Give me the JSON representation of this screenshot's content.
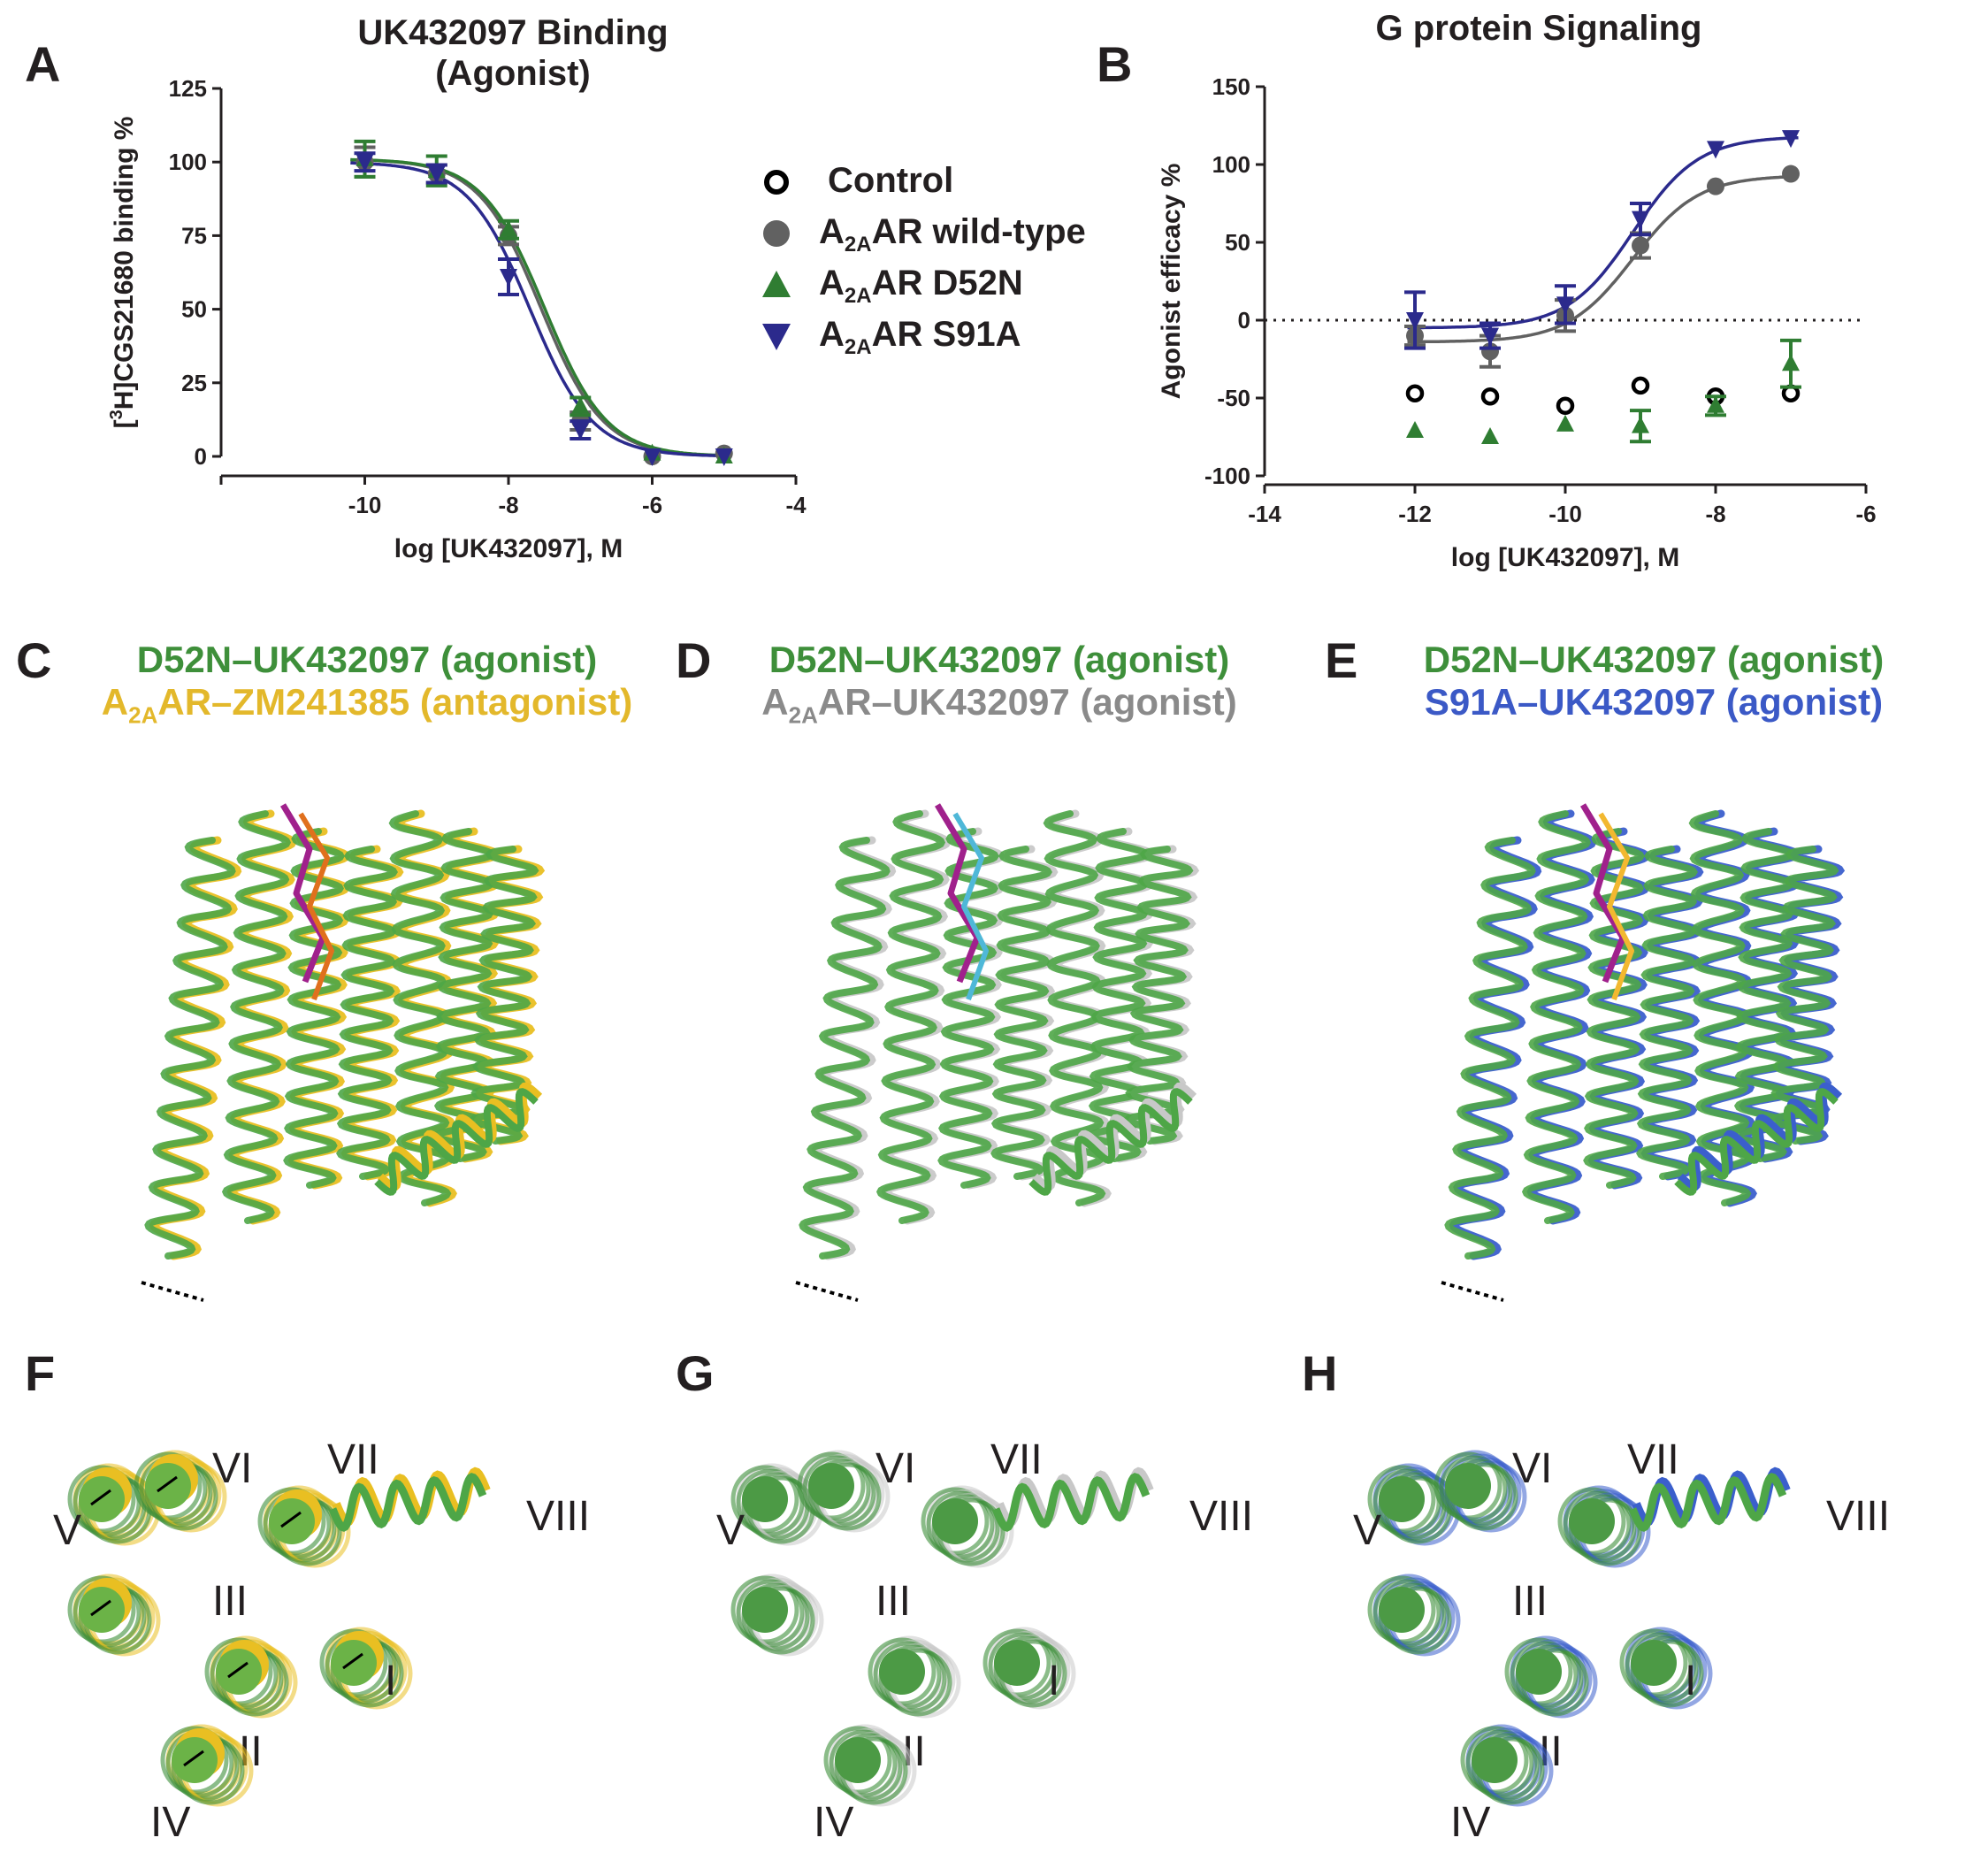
{
  "panels": {
    "A": {
      "letter": "A",
      "title_line1": "UK432097 Binding",
      "title_line2": "(Agonist)",
      "ylabel": "CGS21680 binding %",
      "xlabel": "log [UK432097], M"
    },
    "B": {
      "letter": "B",
      "title": "G protein Signaling",
      "ylabel": "Agonist efficacy %",
      "xlabel": "log [UK432097], M"
    },
    "C": {
      "letter": "C",
      "line1": "D52N–UK432097 (agonist)",
      "line2_main": "AR–ZM241385 (antagonist)"
    },
    "D": {
      "letter": "D",
      "line1": "D52N–UK432097 (agonist)",
      "line2_main": "AR–UK432097 (agonist)"
    },
    "E": {
      "letter": "E",
      "line1": "D52N–UK432097 (agonist)",
      "line2": "S91A–UK432097 (agonist)"
    },
    "F": {
      "letter": "F",
      "helices": [
        "I",
        "II",
        "III",
        "IV",
        "V",
        "VI",
        "VII",
        "VIII"
      ]
    },
    "G": {
      "letter": "G",
      "helices": [
        "I",
        "II",
        "III",
        "IV",
        "V",
        "VI",
        "VII",
        "VIII"
      ]
    },
    "H": {
      "letter": "H",
      "helices": [
        "I",
        "II",
        "III",
        "IV",
        "V",
        "VI",
        "VII",
        "VIII"
      ]
    }
  },
  "legend": {
    "control": "Control",
    "wt": "AR wild-type",
    "d52n": "AR D52N",
    "s91a": "AR S91A",
    "a_prefix": "A",
    "subscript": "2A"
  },
  "colors": {
    "control": "#000000",
    "wt": "#616161",
    "d52n": "#2f7d32",
    "s91a": "#2b2a8c",
    "struct_green": "#4ea647",
    "struct_gold": "#e9bf22",
    "struct_grey": "#c8c8c8",
    "struct_blue": "#3b5fcc"
  },
  "chart_data": [
    {
      "type": "scatter",
      "title": "UK432097 Binding (Agonist)",
      "xlabel": "log [UK432097], M",
      "ylabel": "[3H]CGS21680 binding %",
      "xlim": [
        -12,
        -4
      ],
      "ylim": [
        0,
        125
      ],
      "xticks": [
        -10,
        -8,
        -6,
        -4
      ],
      "yticks": [
        0,
        25,
        50,
        75,
        100,
        125
      ],
      "legend": "right",
      "series": [
        {
          "name": "A2AAR wild-type",
          "marker": "circle",
          "x": [
            -10,
            -9,
            -8,
            -7,
            -6,
            -5
          ],
          "y": [
            100,
            96,
            75,
            12,
            0,
            1
          ],
          "err": [
            5,
            3,
            3,
            3,
            1,
            1
          ],
          "fit": {
            "top": 101,
            "bottom": 0,
            "logEC50": -7.55,
            "hill": -1
          }
        },
        {
          "name": "A2AAR D52N",
          "marker": "triangle-up",
          "x": [
            -10,
            -9,
            -8,
            -7,
            -6,
            -5
          ],
          "y": [
            101,
            97,
            77,
            17,
            1,
            0
          ],
          "err": [
            6,
            5,
            3,
            3,
            1,
            1
          ],
          "fit": {
            "top": 101,
            "bottom": 0,
            "logEC50": -7.5,
            "hill": -1
          }
        },
        {
          "name": "A2AAR S91A",
          "marker": "triangle-down",
          "x": [
            -10,
            -9,
            -8,
            -7,
            -6,
            -5
          ],
          "y": [
            100,
            96,
            61,
            9,
            0,
            0
          ],
          "err": [
            3,
            3,
            6,
            3,
            1,
            1
          ],
          "fit": {
            "top": 100,
            "bottom": 0,
            "logEC50": -7.7,
            "hill": -1
          }
        }
      ]
    },
    {
      "type": "scatter",
      "title": "G protein Signaling",
      "xlabel": "log [UK432097], M",
      "ylabel": "Agonist efficacy %",
      "xlim": [
        -14,
        -6
      ],
      "ylim": [
        -100,
        150
      ],
      "xticks": [
        -14,
        -12,
        -10,
        -8,
        -6
      ],
      "yticks": [
        -100,
        -50,
        0,
        50,
        100,
        150
      ],
      "reference_line": 0,
      "series": [
        {
          "name": "Control",
          "marker": "open-circle",
          "x": [
            -12,
            -11,
            -10,
            -9,
            -8,
            -7
          ],
          "y": [
            -47,
            -49,
            -55,
            -42,
            -49,
            -47
          ],
          "err": [
            0,
            0,
            0,
            0,
            0,
            0
          ]
        },
        {
          "name": "A2AAR wild-type",
          "marker": "circle",
          "x": [
            -12,
            -11,
            -10,
            -9,
            -8,
            -7
          ],
          "y": [
            -10,
            -20,
            3,
            48,
            86,
            94
          ],
          "err": [
            6,
            10,
            10,
            8,
            0,
            0
          ],
          "fit": {
            "bottom": -14,
            "top": 93,
            "logEC50": -9.1,
            "hill": 1
          }
        },
        {
          "name": "A2AAR D52N",
          "marker": "triangle-up",
          "x": [
            -12,
            -11,
            -10,
            -9,
            -8,
            -7
          ],
          "y": [
            -71,
            -75,
            -67,
            -68,
            -55,
            -28
          ],
          "err": [
            0,
            0,
            0,
            10,
            6,
            15
          ]
        },
        {
          "name": "A2AAR S91A",
          "marker": "triangle-down",
          "x": [
            -12,
            -11,
            -10,
            -9,
            -8,
            -7
          ],
          "y": [
            0,
            -10,
            10,
            65,
            110,
            117
          ],
          "err": [
            18,
            8,
            12,
            10,
            0,
            0
          ],
          "fit": {
            "bottom": -5,
            "top": 118,
            "logEC50": -9.1,
            "hill": 1
          }
        }
      ]
    }
  ]
}
